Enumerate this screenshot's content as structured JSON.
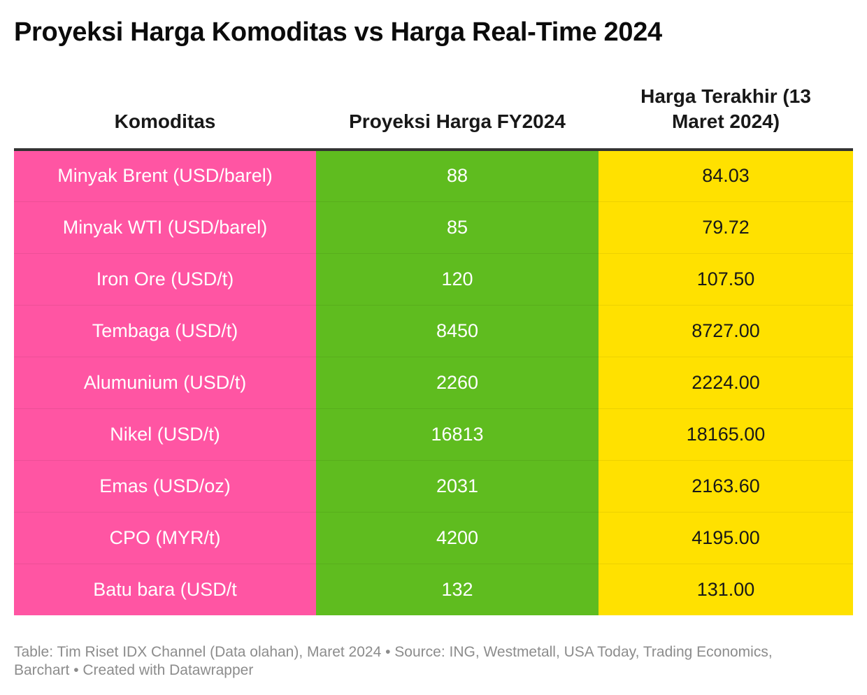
{
  "colors": {
    "komoditas": "#ff55a3",
    "proyeksi": "#5fbc1f",
    "harga_terakhir": "#ffe100"
  },
  "chart_data": {
    "type": "table",
    "title": "Proyeksi Harga Komoditas vs Harga Real-Time 2024",
    "columns": [
      "Komoditas",
      "Proyeksi Harga FY2024",
      "Harga Terakhir (13 Maret 2024)"
    ],
    "rows": [
      [
        "Minyak Brent (USD/barel)",
        "88",
        "84.03"
      ],
      [
        "Minyak WTI (USD/barel)",
        "85",
        "79.72"
      ],
      [
        "Iron Ore (USD/t)",
        "120",
        "107.50"
      ],
      [
        "Tembaga (USD/t)",
        "8450",
        "8727.00"
      ],
      [
        "Alumunium (USD/t)",
        "2260",
        "2224.00"
      ],
      [
        "Nikel (USD/t)",
        "16813",
        "18165.00"
      ],
      [
        "Emas (USD/oz)",
        "2031",
        "2163.60"
      ],
      [
        "CPO (MYR/t)",
        "4200",
        "4195.00"
      ],
      [
        "Batu bara (USD/t",
        "132",
        "131.00"
      ]
    ],
    "footer": "Table: Tim Riset IDX Channel (Data olahan), Maret 2024 • Source: ING, Westmetall, USA Today, Trading Economics, Barchart • Created with Datawrapper"
  }
}
